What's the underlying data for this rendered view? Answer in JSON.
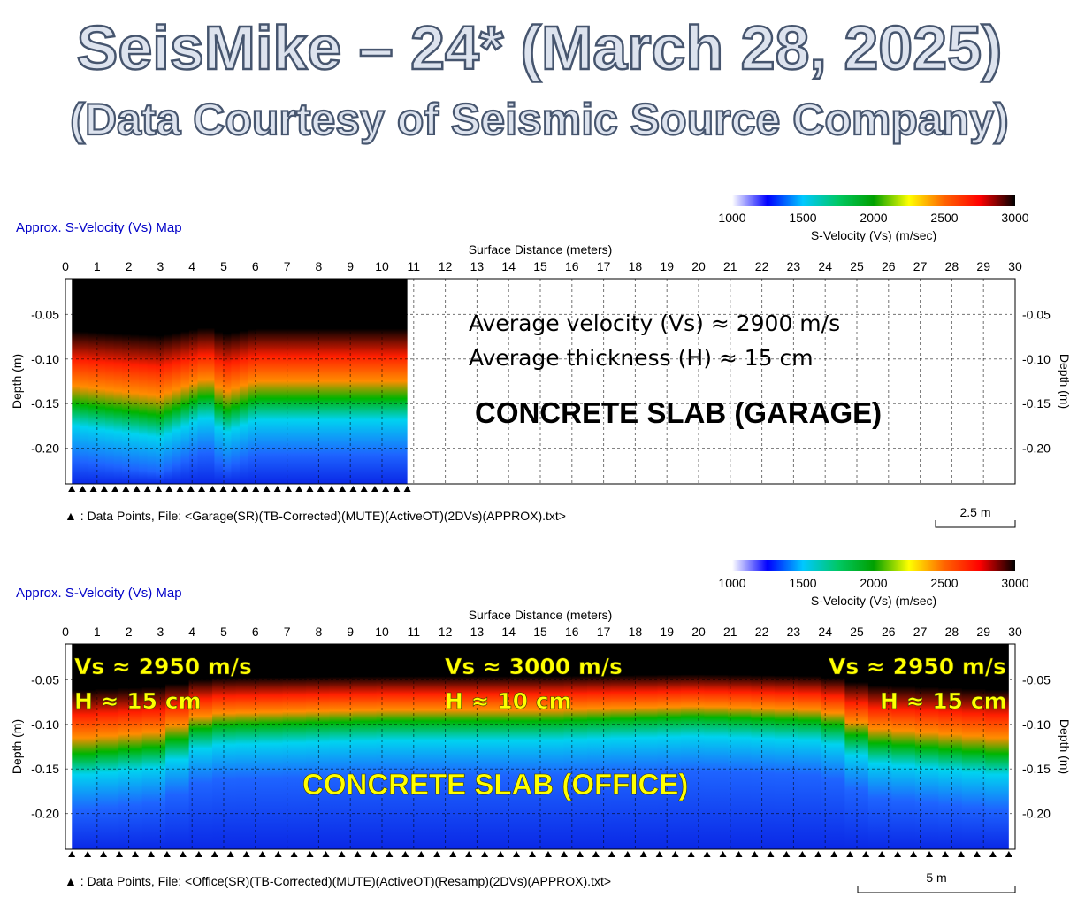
{
  "title": {
    "line1": "SeisMike – 24* (March 28, 2025)",
    "line2": "(Data Courtesy of Seismic Source Company)"
  },
  "colorbar": {
    "ticks": [
      "1000",
      "1500",
      "2000",
      "2500",
      "3000"
    ],
    "label": "S-Velocity (Vs) (m/sec)",
    "min": 1000,
    "max": 3000,
    "colors": [
      "#ffffff",
      "#0000ff",
      "#00c8ff",
      "#00c864",
      "#00a000",
      "#ffff00",
      "#ff6400",
      "#ff0000",
      "#000000"
    ]
  },
  "chart_data": [
    {
      "type": "heatmap",
      "title": "Approx. S-Velocity (Vs) Map",
      "xlabel": "Surface Distance (meters)",
      "ylabel": "Depth (m)",
      "xlim": [
        0,
        30
      ],
      "ylim": [
        -0.24,
        -0.01
      ],
      "x_ticks": [
        "0",
        "1",
        "2",
        "3",
        "4",
        "5",
        "6",
        "7",
        "8",
        "9",
        "10",
        "11",
        "12",
        "13",
        "14",
        "15",
        "16",
        "17",
        "18",
        "19",
        "20",
        "21",
        "22",
        "23",
        "24",
        "25",
        "26",
        "27",
        "28",
        "29",
        "30"
      ],
      "y_ticks": [
        {
          "v": -0.05,
          "label": "-0.05"
        },
        {
          "v": -0.1,
          "label": "-0.10"
        },
        {
          "v": -0.15,
          "label": "-0.15"
        },
        {
          "v": -0.2,
          "label": "-0.20"
        }
      ],
      "data_extent": [
        0.2,
        10.8
      ],
      "data_point_count": 32,
      "file_note": "▲ : Data Points,  File: <Garage(SR)(TB-Corrected)(MUTE)(ActiveOT)(2DVs)(APPROX).txt>",
      "scale_bar": "2.5 m",
      "profile": [
        {
          "x": 0,
          "vs_top": 2950,
          "h": -0.155
        },
        {
          "x": 3,
          "vs_top": 2950,
          "h": -0.17
        },
        {
          "x": 4.5,
          "vs_top": 2950,
          "h": -0.145
        },
        {
          "x": 5,
          "vs_top": 2950,
          "h": -0.165
        },
        {
          "x": 6,
          "vs_top": 2900,
          "h": -0.15
        },
        {
          "x": 10.8,
          "vs_top": 2900,
          "h": -0.15
        }
      ],
      "annotations": [
        {
          "text": "Average velocity (Vs) ≈ 2900 m/s",
          "color": "#000000"
        },
        {
          "text": "Average thickness (H) ≈ 15 cm",
          "color": "#000000"
        },
        {
          "text": "CONCRETE SLAB (GARAGE)",
          "color": "#000000"
        }
      ]
    },
    {
      "type": "heatmap",
      "title": "Approx. S-Velocity (Vs) Map",
      "xlabel": "Surface Distance (meters)",
      "ylabel": "Depth (m)",
      "xlim": [
        0,
        30
      ],
      "ylim": [
        -0.24,
        -0.01
      ],
      "x_ticks": [
        "0",
        "1",
        "2",
        "3",
        "4",
        "5",
        "6",
        "7",
        "8",
        "9",
        "10",
        "11",
        "12",
        "13",
        "14",
        "15",
        "16",
        "17",
        "18",
        "19",
        "20",
        "21",
        "22",
        "23",
        "24",
        "25",
        "26",
        "27",
        "28",
        "29",
        "30"
      ],
      "y_ticks": [
        {
          "v": -0.05,
          "label": "-0.05"
        },
        {
          "v": -0.1,
          "label": "-0.10"
        },
        {
          "v": -0.15,
          "label": "-0.15"
        },
        {
          "v": -0.2,
          "label": "-0.20"
        }
      ],
      "data_extent": [
        0.2,
        29.8
      ],
      "data_point_count": 60,
      "file_note": "▲ : Data Points,  File: <Office(SR)(TB-Corrected)(MUTE)(ActiveOT)(Resamp)(2DVs)(APPROX).txt>",
      "scale_bar": "5 m",
      "profile": [
        {
          "x": 0,
          "vs_top": 2950,
          "h": -0.14
        },
        {
          "x": 3,
          "vs_top": 2950,
          "h": -0.13
        },
        {
          "x": 4.5,
          "vs_top": 3000,
          "h": -0.105
        },
        {
          "x": 10,
          "vs_top": 3000,
          "h": -0.1
        },
        {
          "x": 15,
          "vs_top": 3000,
          "h": -0.1
        },
        {
          "x": 20,
          "vs_top": 3000,
          "h": -0.095
        },
        {
          "x": 24,
          "vs_top": 3000,
          "h": -0.1
        },
        {
          "x": 25.5,
          "vs_top": 2950,
          "h": -0.125
        },
        {
          "x": 30,
          "vs_top": 2950,
          "h": -0.14
        }
      ],
      "annotations": [
        {
          "text": "Vs ≈ 2950 m/s",
          "color": "#ffff00"
        },
        {
          "text": "H ≈ 15 cm",
          "color": "#ffff00"
        },
        {
          "text": "Vs ≈ 3000 m/s",
          "color": "#ffff00"
        },
        {
          "text": "H ≈ 10 cm",
          "color": "#ffff00"
        },
        {
          "text": "Vs ≈ 2950 m/s",
          "color": "#ffff00"
        },
        {
          "text": "H ≈ 15 cm",
          "color": "#ffff00"
        },
        {
          "text": "CONCRETE SLAB (OFFICE)",
          "color": "#ffff00"
        }
      ]
    }
  ]
}
